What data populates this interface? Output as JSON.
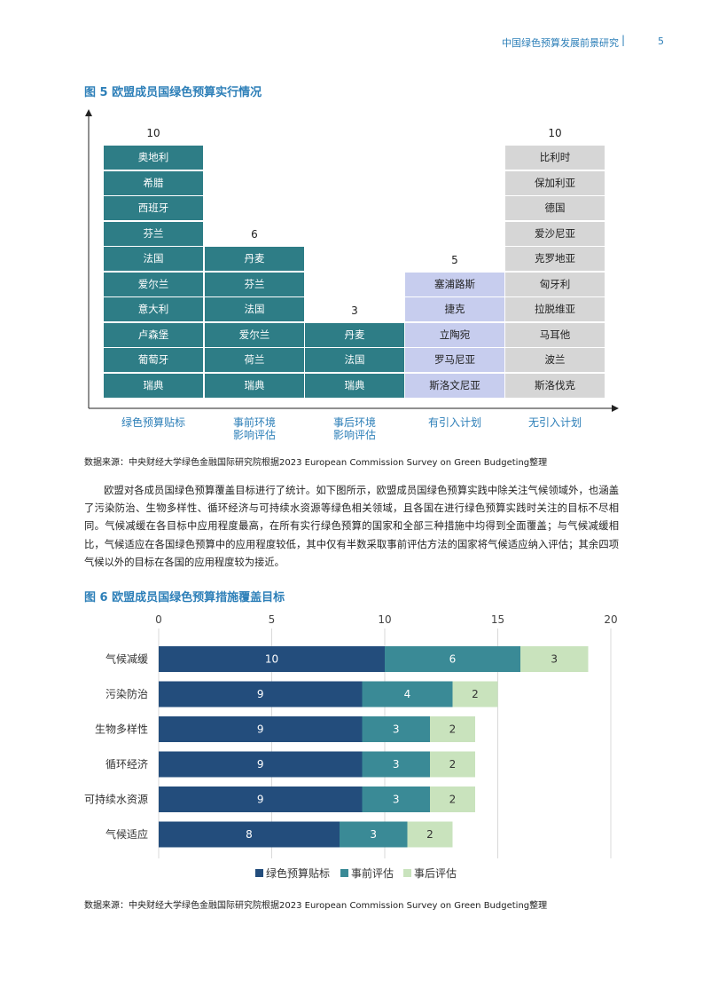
{
  "header": {
    "title": "中国绿色预算发展前景研究",
    "separator": "|",
    "page": "5"
  },
  "figure5": {
    "title": "图 5 欧盟成员国绿色预算实行情况",
    "columns": [
      {
        "label": "绿色预算贴标",
        "count": "10",
        "style": "teal",
        "countries": [
          "瑞典",
          "葡萄牙",
          "卢森堡",
          "意大利",
          "爱尔兰",
          "法国",
          "芬兰",
          "西班牙",
          "希腊",
          "奥地利"
        ]
      },
      {
        "label": "事前环境影响评估",
        "count": "6",
        "style": "teal",
        "countries": [
          "瑞典",
          "荷兰",
          "爱尔兰",
          "法国",
          "芬兰",
          "丹麦"
        ]
      },
      {
        "label": "事后环境影响评估",
        "count": "3",
        "style": "teal",
        "countries": [
          "瑞典",
          "法国",
          "丹麦"
        ]
      },
      {
        "label": "有引入计划",
        "count": "5",
        "style": "blue",
        "countries": [
          "斯洛文尼亚",
          "罗马尼亚",
          "立陶宛",
          "捷克",
          "塞浦路斯"
        ]
      },
      {
        "label": "无引入计划",
        "count": "10",
        "style": "gray",
        "countries": [
          "斯洛伐克",
          "波兰",
          "马耳他",
          "拉脱维亚",
          "匈牙利",
          "克罗地亚",
          "爱沙尼亚",
          "德国",
          "保加利亚",
          "比利时"
        ]
      }
    ],
    "col_label_lines": [
      [
        "绿色预算贴标"
      ],
      [
        "事前环境",
        "影响评估"
      ],
      [
        "事后环境",
        "影响评估"
      ],
      [
        "有引入计划"
      ],
      [
        "无引入计划"
      ]
    ],
    "source": "数据来源：中央财经大学绿色金融国际研究院根据2023 European Commission Survey on Green Budgeting整理"
  },
  "paragraph": "欧盟对各成员国绿色预算覆盖目标进行了统计。如下图所示，欧盟成员国绿色预算实践中除关注气候领域外，也涵盖了污染防治、生物多样性、循环经济与可持续水资源等绿色相关领域，且各国在进行绿色预算实践时关注的目标不尽相同。气候减缓在各目标中应用程度最高，在所有实行绿色预算的国家和全部三种措施中均得到全面覆盖；与气候减缓相比，气候适应在各国绿色预算中的应用程度较低，其中仅有半数采取事前评估方法的国家将气候适应纳入评估；其余四项气候以外的目标在各国的应用程度较为接近。",
  "figure6": {
    "title": "图 6 欧盟成员国绿色预算措施覆盖目标",
    "source": "数据来源：中央财经大学绿色金融国际研究院根据2023 European Commission Survey on Green Budgeting整理"
  },
  "chart_data": {
    "type": "bar",
    "orientation": "horizontal",
    "stacked": true,
    "categories": [
      "气候减缓",
      "污染防治",
      "生物多样性",
      "循环经济",
      "可持续水资源",
      "气候适应"
    ],
    "series": [
      {
        "name": "绿色预算贴标",
        "values": [
          10,
          9,
          9,
          9,
          9,
          8
        ],
        "color": "#234d7c"
      },
      {
        "name": "事前评估",
        "values": [
          6,
          4,
          3,
          3,
          3,
          3
        ],
        "color": "#3a8a96"
      },
      {
        "name": "事后评估",
        "values": [
          3,
          2,
          2,
          2,
          2,
          2
        ],
        "color": "#c9e3bd"
      }
    ],
    "xlim": [
      0,
      20
    ],
    "xticks": [
      0,
      5,
      10,
      15,
      20
    ],
    "grid": true,
    "legend": "bottom"
  }
}
